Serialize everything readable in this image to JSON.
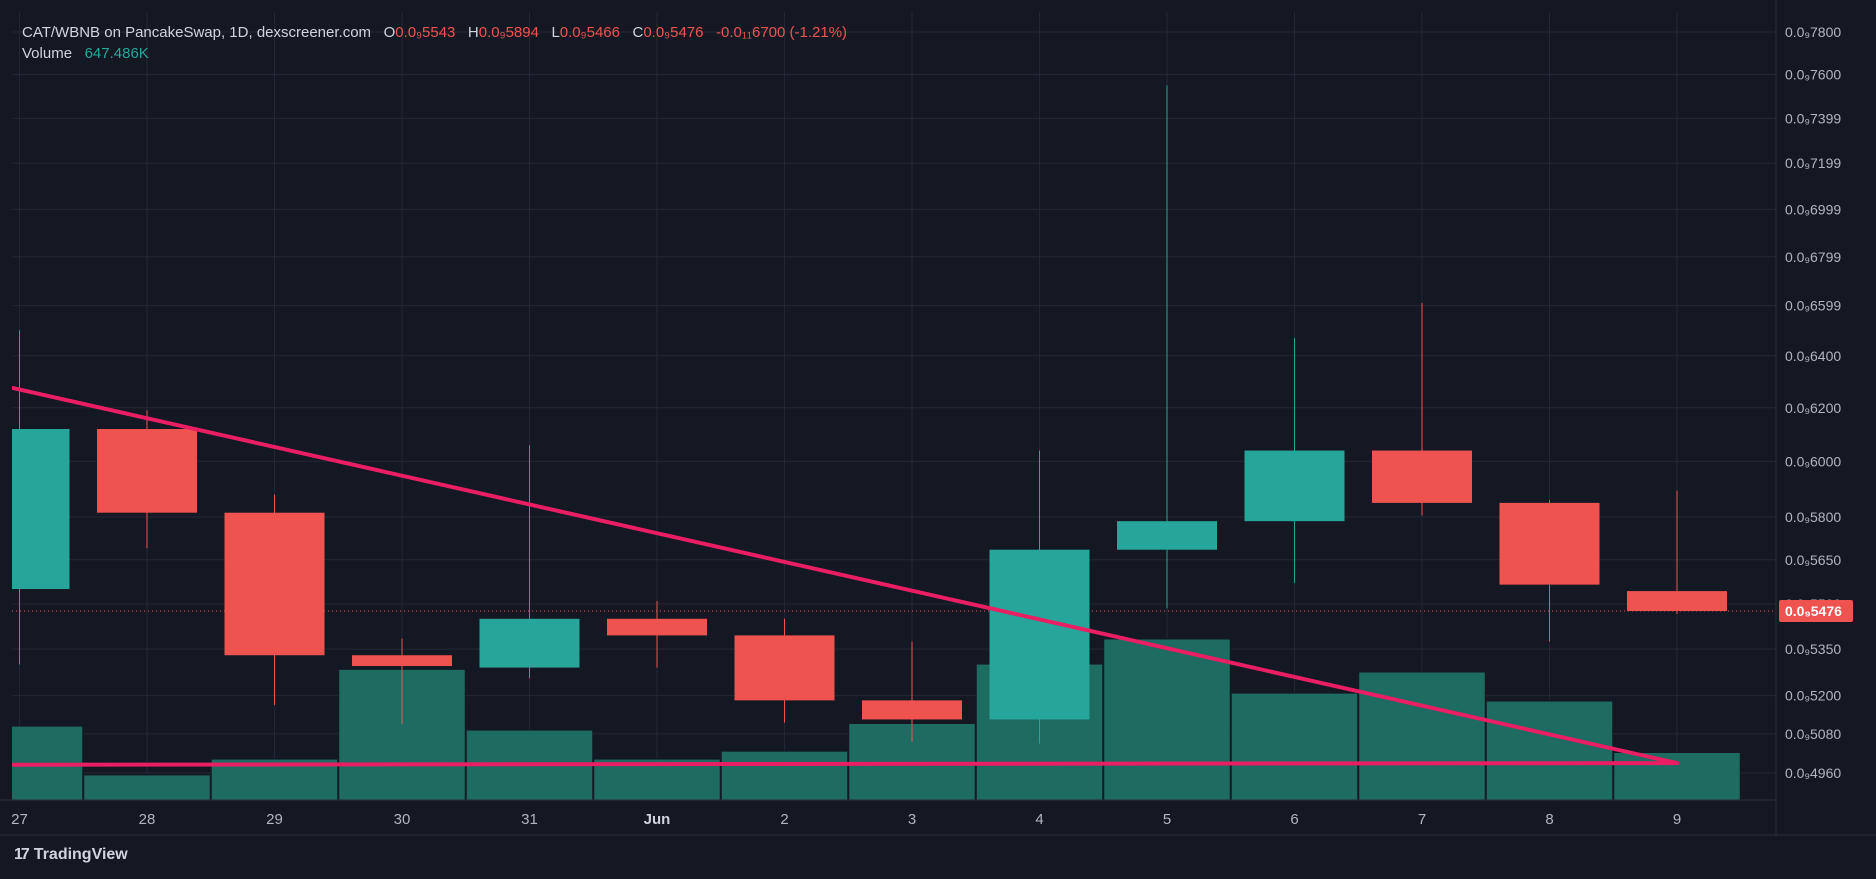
{
  "legend": {
    "title": "CAT/WBNB on PancakeSwap, 1D, dexscreener.com",
    "o_label": "O",
    "o_value": "0.0₉5543",
    "h_label": "H",
    "h_value": "0.0₉5894",
    "l_label": "L",
    "l_value": "0.0₉5466",
    "c_label": "C",
    "c_value": "0.0₉5476",
    "change": "-0.0₁₁6700 (-1.21%)",
    "volume_label": "Volume",
    "volume_value": "647.486K"
  },
  "brand": {
    "logo": "17",
    "name": "TradingView"
  },
  "colors": {
    "up": "#26a69a",
    "down": "#ef5350",
    "volume": "#1e6b61",
    "trendline": "#e91e63",
    "background": "#141823",
    "grid": "#232733",
    "text": "#b2b5be"
  },
  "chart_data": {
    "type": "candlestick",
    "y_scale": "log",
    "y_tick_labels": [
      "0.0₉7800",
      "0.0₉7600",
      "0.0₉7399",
      "0.0₉7199",
      "0.0₉6999",
      "0.0₉6799",
      "0.0₉6599",
      "0.0₉6400",
      "0.0₉6200",
      "0.0₉6000",
      "0.0₉5800",
      "0.0₉5650",
      "0.0₉5500",
      "0.0₉5350",
      "0.0₉5200",
      "0.0₉5080",
      "0.0₉4960"
    ],
    "y_tick_values": [
      7800,
      7600,
      7399,
      7199,
      6999,
      6799,
      6599,
      6400,
      6200,
      6000,
      5800,
      5650,
      5500,
      5350,
      5200,
      5080,
      4960
    ],
    "x_tick_labels": [
      "27",
      "28",
      "29",
      "30",
      "31",
      "Jun",
      "2",
      "3",
      "4",
      "5",
      "6",
      "7",
      "8",
      "9"
    ],
    "x_tick_bold": [
      false,
      false,
      false,
      false,
      false,
      true,
      false,
      false,
      false,
      false,
      false,
      false,
      false,
      false
    ],
    "candles": [
      {
        "label": "27",
        "open": 5550,
        "high": 6500,
        "low": 5300,
        "close": 6120
      },
      {
        "label": "28",
        "open": 6120,
        "high": 6190,
        "low": 5690,
        "close": 5815
      },
      {
        "label": "29",
        "open": 5815,
        "high": 5880,
        "low": 5170,
        "close": 5330
      },
      {
        "label": "30",
        "open": 5330,
        "high": 5385,
        "low": 5110,
        "close": 5295
      },
      {
        "label": "31",
        "open": 5290,
        "high": 6060,
        "low": 5255,
        "close": 5450
      },
      {
        "label": "Jun",
        "open": 5450,
        "high": 5510,
        "low": 5290,
        "close": 5395
      },
      {
        "label": "2",
        "open": 5395,
        "high": 5450,
        "low": 5115,
        "close": 5185
      },
      {
        "label": "3",
        "open": 5185,
        "high": 5375,
        "low": 5055,
        "close": 5125
      },
      {
        "label": "4",
        "open": 5125,
        "high": 6040,
        "low": 5050,
        "close": 5685
      },
      {
        "label": "5",
        "open": 5685,
        "high": 7550,
        "low": 5485,
        "close": 5785
      },
      {
        "label": "6",
        "open": 5785,
        "high": 6470,
        "low": 5570,
        "close": 6040
      },
      {
        "label": "7",
        "open": 6040,
        "high": 6610,
        "low": 5805,
        "close": 5850
      },
      {
        "label": "8",
        "open": 5850,
        "high": 5860,
        "low": 5375,
        "close": 5565
      },
      {
        "label": "9",
        "open": 5543,
        "high": 5894,
        "low": 5466,
        "close": 5476
      }
    ],
    "volume_relative": [
      0.56,
      0.19,
      0.31,
      0.99,
      0.53,
      0.31,
      0.37,
      0.58,
      1.03,
      1.22,
      0.81,
      0.97,
      0.75,
      0.36
    ],
    "last_price_label": "0.0₉5476",
    "last_price_value": 5476,
    "trendlines": [
      {
        "name": "descending",
        "x1_index": -0.05,
        "y1": 6275,
        "x2_index": 13.0,
        "y2": 4990
      },
      {
        "name": "horizontal",
        "x1_index": -0.05,
        "y1": 4985,
        "x2_index": 13.0,
        "y2": 4990
      }
    ]
  }
}
